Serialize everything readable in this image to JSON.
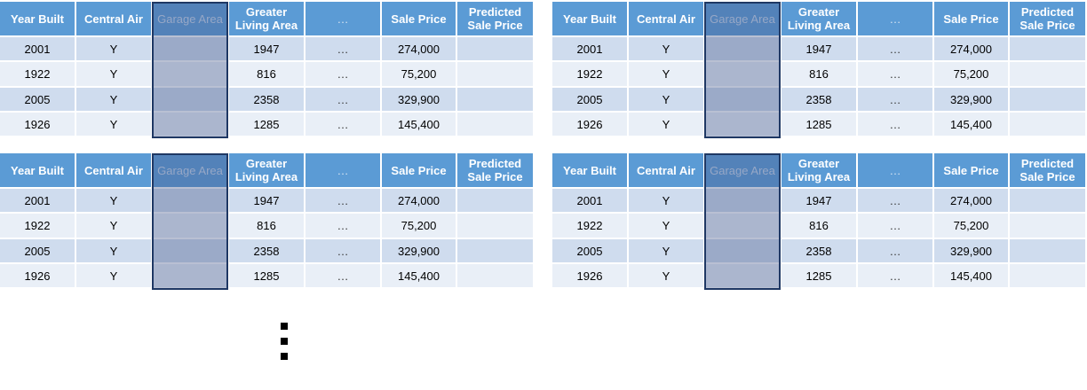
{
  "tables": [
    {
      "headers": [
        "Year Built",
        "Central Air",
        "Garage Area",
        "Greater Living Area",
        "…",
        "Sale Price",
        "Predicted Sale Price"
      ],
      "rows": [
        [
          "2001",
          "Y",
          "",
          "1947",
          "…",
          "274,000",
          ""
        ],
        [
          "1922",
          "Y",
          "",
          "816",
          "…",
          "75,200",
          ""
        ],
        [
          "2005",
          "Y",
          "",
          "2358",
          "…",
          "329,900",
          ""
        ],
        [
          "1926",
          "Y",
          "",
          "1285",
          "…",
          "145,400",
          ""
        ]
      ]
    },
    {
      "headers": [
        "Year Built",
        "Central Air",
        "Garage Area",
        "Greater Living Area",
        "…",
        "Sale Price",
        "Predicted Sale Price"
      ],
      "rows": [
        [
          "2001",
          "Y",
          "",
          "1947",
          "…",
          "274,000",
          ""
        ],
        [
          "1922",
          "Y",
          "",
          "816",
          "…",
          "75,200",
          ""
        ],
        [
          "2005",
          "Y",
          "",
          "2358",
          "…",
          "329,900",
          ""
        ],
        [
          "1926",
          "Y",
          "",
          "1285",
          "…",
          "145,400",
          ""
        ]
      ]
    },
    {
      "headers": [
        "Year Built",
        "Central Air",
        "Garage Area",
        "Greater Living Area",
        "…",
        "Sale Price",
        "Predicted Sale Price"
      ],
      "rows": [
        [
          "2001",
          "Y",
          "",
          "1947",
          "…",
          "274,000",
          ""
        ],
        [
          "1922",
          "Y",
          "",
          "816",
          "…",
          "75,200",
          ""
        ],
        [
          "2005",
          "Y",
          "",
          "2358",
          "…",
          "329,900",
          ""
        ],
        [
          "1926",
          "Y",
          "",
          "1285",
          "…",
          "145,400",
          ""
        ]
      ]
    },
    {
      "headers": [
        "Year Built",
        "Central Air",
        "Garage Area",
        "Greater Living Area",
        "…",
        "Sale Price",
        "Predicted Sale Price"
      ],
      "rows": [
        [
          "2001",
          "Y",
          "",
          "1947",
          "…",
          "274,000",
          ""
        ],
        [
          "1922",
          "Y",
          "",
          "816",
          "…",
          "75,200",
          ""
        ],
        [
          "2005",
          "Y",
          "",
          "2358",
          "…",
          "329,900",
          ""
        ],
        [
          "1926",
          "Y",
          "",
          "1285",
          "…",
          "145,400",
          ""
        ]
      ]
    }
  ],
  "colors": {
    "header_bg": "#5b9bd5",
    "row_dark": "#cfdcee",
    "row_light": "#e9eff7",
    "highlight_border": "#1f3864"
  },
  "icons": {
    "continuation": "vertical-ellipsis-icon"
  }
}
